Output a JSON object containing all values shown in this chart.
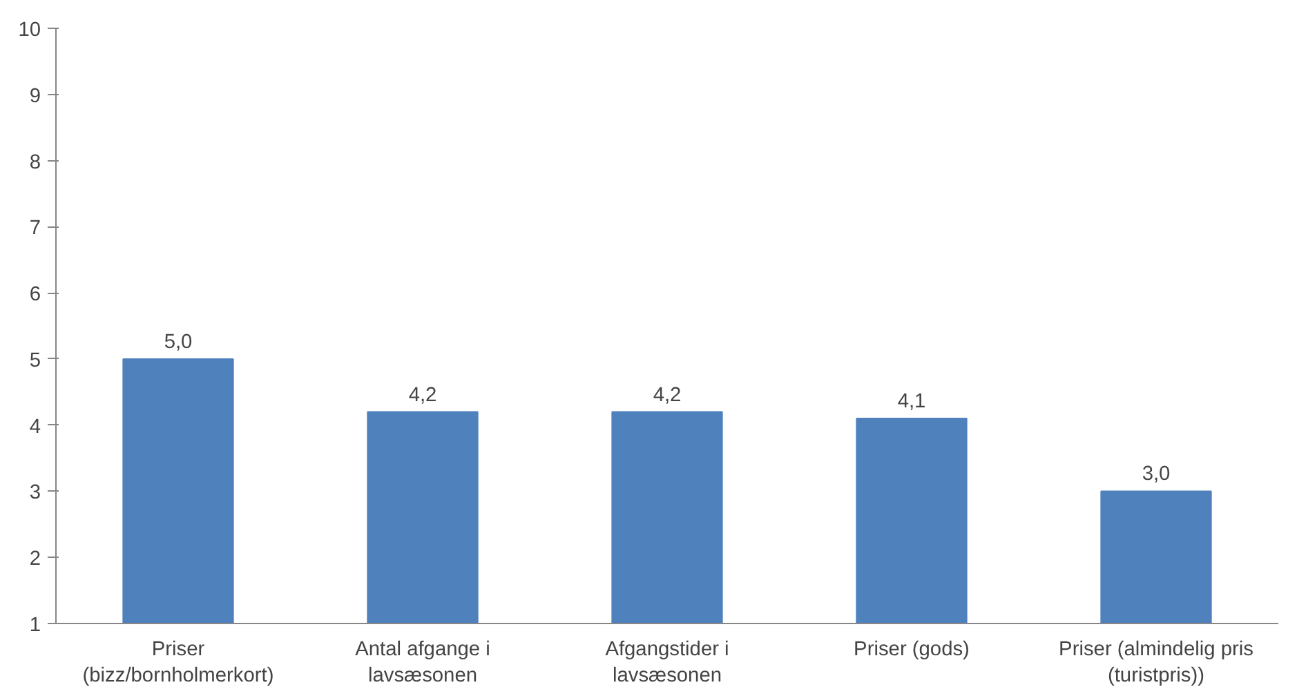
{
  "chart_data": {
    "type": "bar",
    "categories": [
      "Priser (bizz/bornholmerkort)",
      "Antal afgange i lavsæsonen",
      "Afgangstider i lavsæsonen",
      "Priser (gods)",
      "Priser (almindelig pris (turistpris))"
    ],
    "values": [
      5.0,
      4.2,
      4.2,
      4.1,
      3.0
    ],
    "value_labels": [
      "5,0",
      "4,2",
      "4,2",
      "4,1",
      "3,0"
    ],
    "color": "#4f81bd",
    "ylim": [
      1,
      10
    ],
    "yticks": [
      1,
      2,
      3,
      4,
      5,
      6,
      7,
      8,
      9,
      10
    ],
    "grid": false
  }
}
